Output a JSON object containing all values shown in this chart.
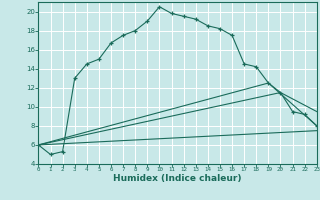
{
  "xlabel": "Humidex (Indice chaleur)",
  "bg_color": "#c8e8e8",
  "grid_color": "#ffffff",
  "line_color": "#1a6b5a",
  "xlim": [
    0,
    23
  ],
  "ylim": [
    4,
    21
  ],
  "yticks": [
    4,
    6,
    8,
    10,
    12,
    14,
    16,
    18,
    20
  ],
  "xticks": [
    0,
    1,
    2,
    3,
    4,
    5,
    6,
    7,
    8,
    9,
    10,
    11,
    12,
    13,
    14,
    15,
    16,
    17,
    18,
    19,
    20,
    21,
    22,
    23
  ],
  "main_x": [
    0,
    1,
    2,
    3,
    4,
    5,
    6,
    7,
    8,
    9,
    10,
    11,
    12,
    13,
    14,
    15,
    16,
    17,
    18,
    19,
    20,
    21,
    22,
    23
  ],
  "main_y": [
    6.0,
    5.0,
    5.3,
    13.0,
    14.5,
    15.0,
    16.7,
    17.5,
    18.0,
    19.0,
    20.5,
    19.8,
    19.5,
    19.2,
    18.5,
    18.2,
    17.5,
    14.5,
    14.2,
    12.5,
    11.5,
    9.5,
    9.2,
    8.0
  ],
  "line1_x": [
    0,
    23
  ],
  "line1_y": [
    6.0,
    7.5
  ],
  "line2_x": [
    0,
    20,
    23
  ],
  "line2_y": [
    6.0,
    11.5,
    9.5
  ],
  "line3_x": [
    0,
    19,
    23
  ],
  "line3_y": [
    6.0,
    12.5,
    8.0
  ]
}
